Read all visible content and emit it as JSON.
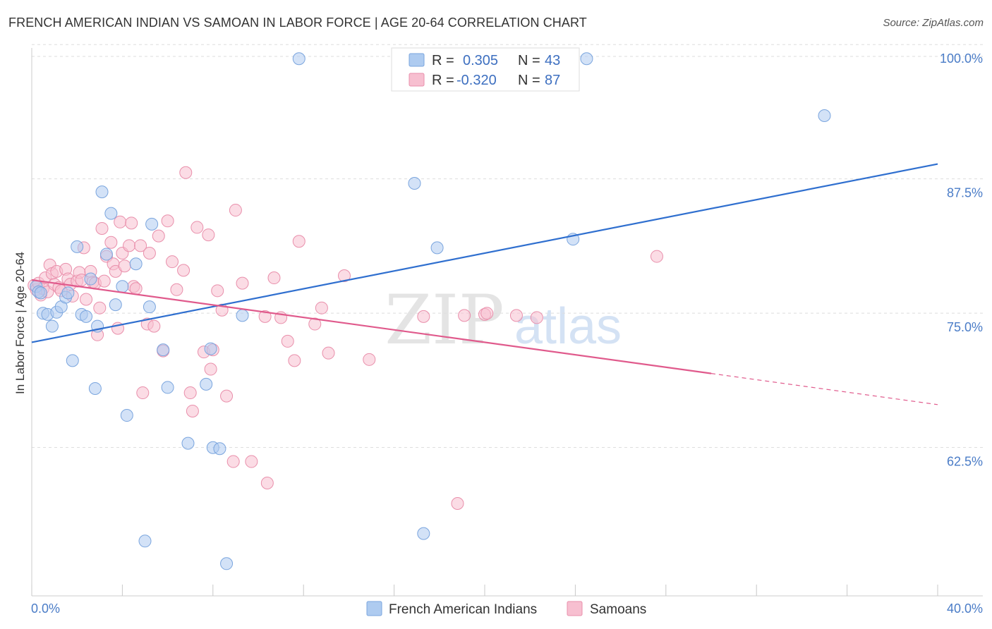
{
  "header": {
    "title": "FRENCH AMERICAN INDIAN VS SAMOAN IN LABOR FORCE | AGE 20-64 CORRELATION CHART",
    "source": "Source: ZipAtlas.com"
  },
  "watermark": {
    "zip": "ZIP",
    "atlas": "atlas"
  },
  "legend": {
    "r_label": "R =",
    "n_label": "N =",
    "rows": [
      {
        "r": "0.305",
        "n": "43"
      },
      {
        "r": "-0.320",
        "n": "87"
      }
    ]
  },
  "colors": {
    "series1_fill": "#aecbf0",
    "series1_stroke": "#7aa5de",
    "series1_line": "#2f6fcf",
    "series2_fill": "#f7bfd0",
    "series2_stroke": "#e98fab",
    "series2_line": "#e05a8c"
  },
  "chart_data": {
    "type": "scatter",
    "title": "FRENCH AMERICAN INDIAN VS SAMOAN IN LABOR FORCE | AGE 20-64 CORRELATION CHART",
    "xlabel": "",
    "ylabel": "In Labor Force | Age 20-64",
    "xlim": [
      0,
      40
    ],
    "ylim": [
      50,
      101
    ],
    "x_tick_labels": [
      "0.0%",
      "40.0%"
    ],
    "y_ticks": [
      62.5,
      75.0,
      87.5,
      100.0
    ],
    "y_tick_labels": [
      "62.5%",
      "75.0%",
      "87.5%",
      "100.0%"
    ],
    "grid": "horizontal dashed",
    "legend_position": "top-center",
    "series": [
      {
        "name": "French American Indians",
        "r": 0.305,
        "n": 43,
        "trend": {
          "x": [
            0,
            40
          ],
          "y": [
            73.6,
            90.2
          ]
        },
        "points": [
          [
            0.2,
            78.8
          ],
          [
            0.3,
            78.3
          ],
          [
            0.5,
            76.3
          ],
          [
            0.7,
            76.2
          ],
          [
            0.9,
            75.1
          ],
          [
            1.1,
            76.4
          ],
          [
            1.3,
            76.9
          ],
          [
            1.5,
            77.8
          ],
          [
            1.6,
            78.2
          ],
          [
            1.8,
            71.9
          ],
          [
            2.0,
            82.5
          ],
          [
            2.2,
            76.2
          ],
          [
            2.4,
            76.0
          ],
          [
            2.6,
            79.5
          ],
          [
            2.8,
            69.3
          ],
          [
            2.9,
            75.1
          ],
          [
            3.1,
            87.6
          ],
          [
            3.3,
            81.8
          ],
          [
            3.5,
            85.6
          ],
          [
            3.7,
            77.1
          ],
          [
            4.0,
            78.8
          ],
          [
            4.2,
            66.8
          ],
          [
            4.6,
            80.9
          ],
          [
            5.0,
            55.1
          ],
          [
            5.2,
            76.9
          ],
          [
            5.3,
            84.6
          ],
          [
            5.8,
            72.9
          ],
          [
            6.0,
            69.4
          ],
          [
            6.9,
            64.2
          ],
          [
            7.7,
            69.7
          ],
          [
            7.9,
            73.0
          ],
          [
            8.0,
            63.8
          ],
          [
            8.3,
            63.7
          ],
          [
            8.6,
            53.0
          ],
          [
            9.3,
            76.1
          ],
          [
            11.8,
            100.0
          ],
          [
            16.9,
            88.4
          ],
          [
            17.3,
            55.8
          ],
          [
            17.9,
            82.4
          ],
          [
            23.9,
            83.2
          ],
          [
            24.5,
            100.0
          ],
          [
            35.0,
            94.7
          ],
          [
            0.4,
            78.2
          ]
        ]
      },
      {
        "name": "Samoans",
        "r": -0.32,
        "n": 87,
        "trend": {
          "x": [
            0,
            30
          ],
          "y": [
            79.4,
            70.7
          ]
        },
        "trend_dashed": {
          "x": [
            30,
            40
          ],
          "y": [
            70.7,
            67.8
          ]
        },
        "points": [
          [
            0.1,
            78.9
          ],
          [
            0.2,
            78.5
          ],
          [
            0.3,
            79.1
          ],
          [
            0.4,
            78.0
          ],
          [
            0.5,
            78.6
          ],
          [
            0.6,
            79.6
          ],
          [
            0.7,
            78.3
          ],
          [
            0.8,
            80.8
          ],
          [
            0.9,
            80.0
          ],
          [
            1.0,
            79.0
          ],
          [
            1.1,
            80.2
          ],
          [
            1.2,
            78.7
          ],
          [
            1.3,
            78.4
          ],
          [
            1.5,
            80.4
          ],
          [
            1.6,
            79.5
          ],
          [
            1.7,
            79.0
          ],
          [
            1.8,
            77.9
          ],
          [
            2.0,
            79.3
          ],
          [
            2.1,
            80.1
          ],
          [
            2.2,
            79.4
          ],
          [
            2.3,
            82.4
          ],
          [
            2.4,
            77.6
          ],
          [
            2.6,
            80.2
          ],
          [
            2.7,
            79.2
          ],
          [
            2.8,
            79.1
          ],
          [
            2.9,
            74.3
          ],
          [
            3.0,
            76.8
          ],
          [
            3.1,
            84.2
          ],
          [
            3.2,
            79.3
          ],
          [
            3.3,
            81.6
          ],
          [
            3.5,
            82.9
          ],
          [
            3.6,
            80.9
          ],
          [
            3.7,
            80.2
          ],
          [
            3.8,
            74.9
          ],
          [
            3.9,
            84.8
          ],
          [
            4.0,
            81.9
          ],
          [
            4.1,
            80.7
          ],
          [
            4.3,
            82.6
          ],
          [
            4.5,
            78.8
          ],
          [
            4.4,
            84.7
          ],
          [
            4.6,
            78.6
          ],
          [
            4.8,
            82.6
          ],
          [
            4.9,
            68.9
          ],
          [
            5.1,
            75.3
          ],
          [
            5.2,
            81.9
          ],
          [
            5.4,
            75.1
          ],
          [
            5.6,
            83.5
          ],
          [
            5.8,
            72.8
          ],
          [
            6.0,
            84.9
          ],
          [
            6.2,
            81.1
          ],
          [
            6.4,
            78.5
          ],
          [
            6.7,
            80.3
          ],
          [
            6.8,
            89.4
          ],
          [
            7.0,
            68.9
          ],
          [
            7.1,
            67.2
          ],
          [
            7.3,
            84.3
          ],
          [
            7.6,
            72.7
          ],
          [
            7.8,
            83.6
          ],
          [
            7.9,
            71.1
          ],
          [
            8.0,
            72.9
          ],
          [
            8.2,
            78.4
          ],
          [
            8.4,
            76.6
          ],
          [
            8.6,
            68.6
          ],
          [
            8.9,
            62.5
          ],
          [
            9.0,
            85.9
          ],
          [
            9.3,
            79.1
          ],
          [
            9.7,
            62.5
          ],
          [
            10.3,
            76.0
          ],
          [
            10.4,
            60.5
          ],
          [
            10.7,
            79.6
          ],
          [
            11.0,
            75.9
          ],
          [
            11.3,
            73.7
          ],
          [
            11.6,
            71.9
          ],
          [
            11.8,
            83.0
          ],
          [
            12.5,
            75.3
          ],
          [
            12.8,
            76.8
          ],
          [
            13.1,
            72.6
          ],
          [
            13.8,
            79.8
          ],
          [
            14.9,
            72.0
          ],
          [
            17.3,
            76.0
          ],
          [
            18.8,
            58.6
          ],
          [
            19.1,
            76.1
          ],
          [
            20.0,
            76.2
          ],
          [
            20.1,
            76.3
          ],
          [
            21.4,
            76.1
          ],
          [
            22.3,
            75.9
          ],
          [
            27.6,
            81.6
          ]
        ]
      }
    ]
  }
}
